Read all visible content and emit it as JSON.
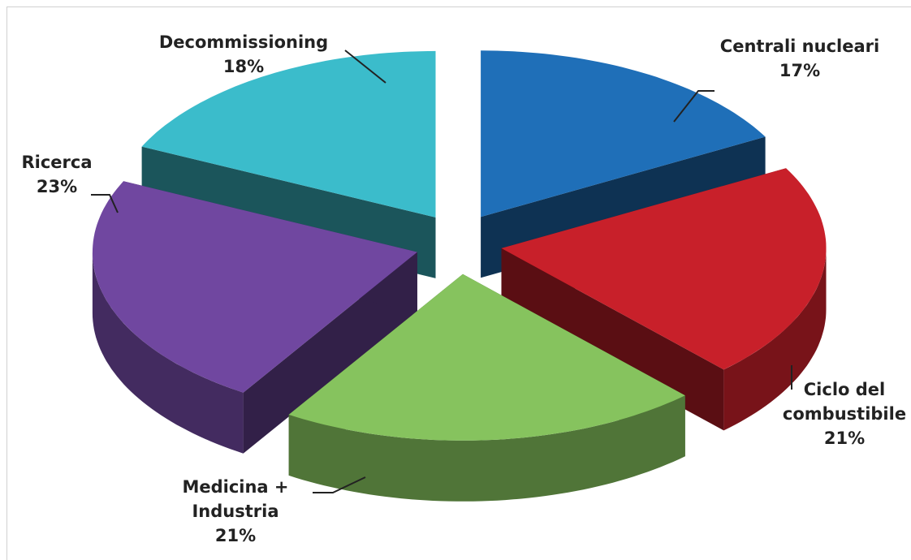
{
  "chart_data": {
    "type": "pie",
    "categories": [
      "Centrali nucleari",
      "Ciclo del combustibile",
      "Medicina + Industria",
      "Ricerca",
      "Decommissioning"
    ],
    "values": [
      17,
      21,
      21,
      23,
      18
    ],
    "value_labels": [
      "17%",
      "21%",
      "21%",
      "23%",
      "18%"
    ],
    "colors": [
      "#1f6fb8",
      "#c8202a",
      "#86c35e",
      "#7047a0",
      "#3bbccb"
    ]
  }
}
